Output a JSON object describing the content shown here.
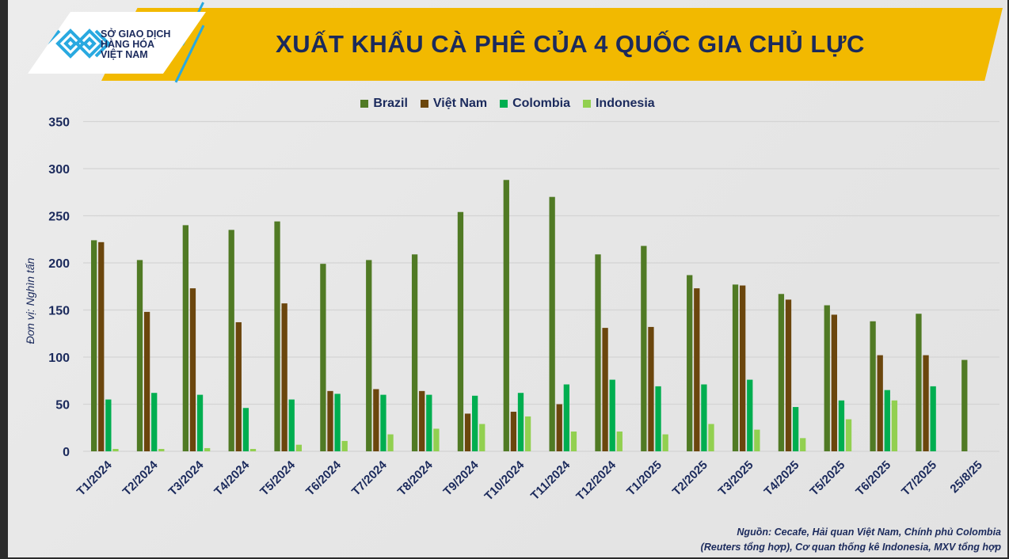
{
  "logo": {
    "line1": "SỞ GIAO DỊCH",
    "line2": "HÀNG HÓA",
    "line3": "VIỆT NAM"
  },
  "chart_data": {
    "type": "bar",
    "title": "XUẤT KHẨU CÀ PHÊ CỦA 4 QUỐC GIA CHỦ LỰC",
    "ylabel": "Đơn vị: Nghìn tấn",
    "xlabel": "",
    "ylim": [
      0,
      350
    ],
    "yticks": [
      0,
      50,
      100,
      150,
      200,
      250,
      300,
      350
    ],
    "grid": true,
    "legend_position": "top-center",
    "categories": [
      "T1/2024",
      "T2/2024",
      "T3/2024",
      "T4/2024",
      "T5/2024",
      "T6/2024",
      "T7/2024",
      "T8/2024",
      "T9/2024",
      "T10/2024",
      "T11/2024",
      "T12/2024",
      "T1/2025",
      "T2/2025",
      "T3/2025",
      "T4/2025",
      "T5/2025",
      "T6/2025",
      "T7/2025",
      "25/8/25"
    ],
    "series": [
      {
        "name": "Brazil",
        "color": "#507a24",
        "values": [
          224,
          203,
          240,
          235,
          244,
          199,
          203,
          209,
          254,
          288,
          270,
          209,
          218,
          187,
          177,
          167,
          155,
          138,
          146,
          97
        ]
      },
      {
        "name": "Việt Nam",
        "color": "#6b460d",
        "values": [
          222,
          148,
          173,
          137,
          157,
          64,
          66,
          64,
          40,
          42,
          50,
          131,
          132,
          173,
          176,
          161,
          145,
          102,
          102,
          null
        ]
      },
      {
        "name": "Colombia",
        "color": "#00ae50",
        "values": [
          55,
          62,
          60,
          46,
          55,
          61,
          60,
          60,
          59,
          62,
          71,
          76,
          69,
          71,
          76,
          47,
          54,
          65,
          69,
          null
        ]
      },
      {
        "name": "Indonesia",
        "color": "#92d050",
        "values": [
          2.5,
          2.5,
          3.4,
          2.5,
          7,
          11,
          18,
          24,
          29,
          37,
          21,
          21,
          18,
          29,
          23,
          14,
          34,
          54,
          null,
          null
        ]
      }
    ],
    "source": [
      "Nguồn: Cecafe, Hải quan Việt Nam, Chính phủ Colombia",
      "(Reuters tổng hợp), Cơ quan thống kê Indonesia, MXV tổng hợp"
    ]
  }
}
